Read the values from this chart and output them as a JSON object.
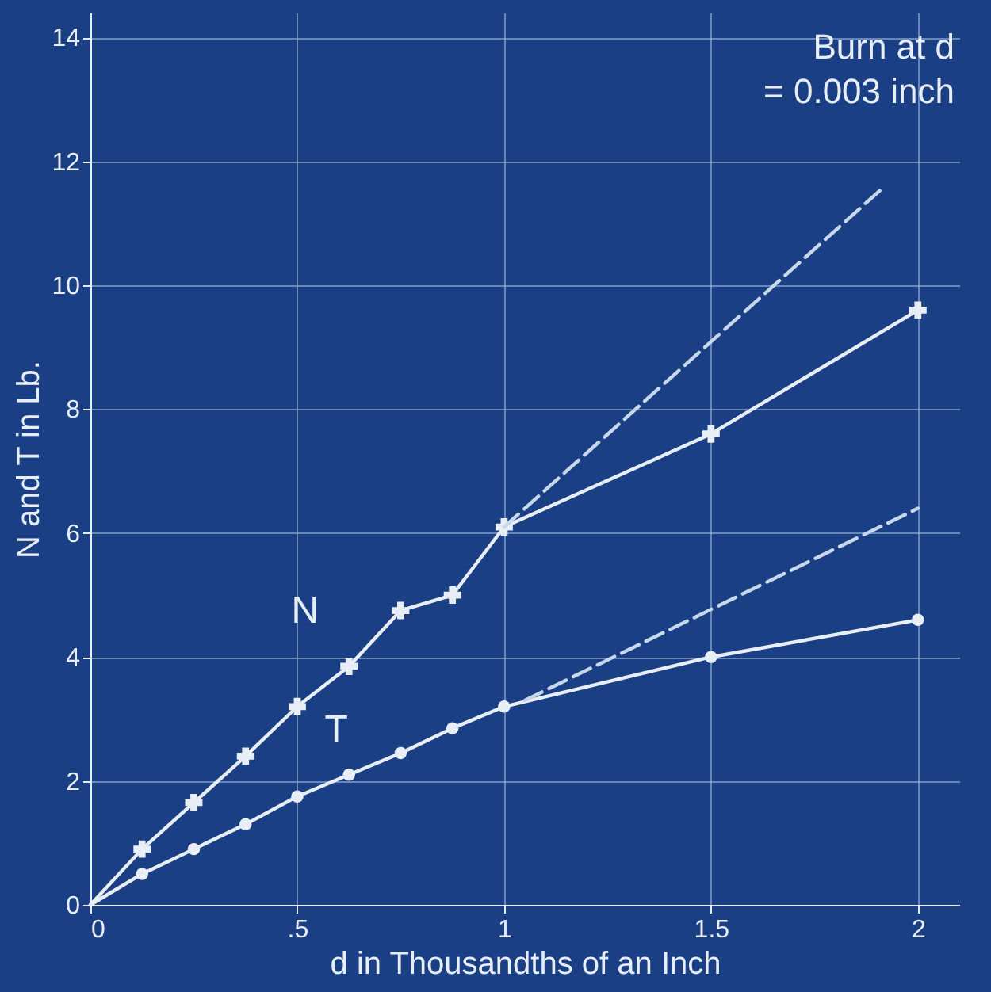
{
  "chart_data": {
    "type": "line",
    "xlabel": "d  in Thousandths of an Inch",
    "ylabel": "N and T in Lb.",
    "annotations": [
      "Burn at d",
      "= 0.003 inch"
    ],
    "x": [
      0,
      0.125,
      0.25,
      0.375,
      0.5,
      0.625,
      0.75,
      0.875,
      1,
      1.5,
      2
    ],
    "series": [
      {
        "name": "N",
        "color": "#e8eef5",
        "marker": "cross",
        "values": [
          0,
          0.9,
          1.65,
          2.4,
          3.2,
          3.85,
          4.75,
          5.0,
          6.1,
          7.6,
          9.6
        ]
      },
      {
        "name": "T",
        "color": "#e8eef5",
        "marker": "circle",
        "values": [
          0,
          0.5,
          0.9,
          1.3,
          1.75,
          2.1,
          2.45,
          2.85,
          3.2,
          4.0,
          4.6
        ]
      },
      {
        "type": "line",
        "color": "#c8d8ec",
        "marker": "none",
        "line_style": "dashed",
        "x": [
          1,
          1.92
        ],
        "values": [
          6.1,
          11.6
        ]
      },
      {
        "type": "line",
        "color": "#c8d8ec",
        "marker": "none",
        "line_style": "dashed",
        "x": [
          1.05,
          2.0
        ],
        "values": [
          3.3,
          6.4
        ]
      }
    ],
    "xlim": [
      0,
      2.1
    ],
    "ylim": [
      0,
      14.4
    ],
    "xticks": [
      0,
      {
        "value": 0.5,
        "label": ".5"
      },
      1,
      1.5,
      2
    ],
    "yticks": [
      0,
      2,
      4,
      6,
      8,
      10,
      12,
      14
    ],
    "grid": true,
    "line_style": "solid"
  }
}
